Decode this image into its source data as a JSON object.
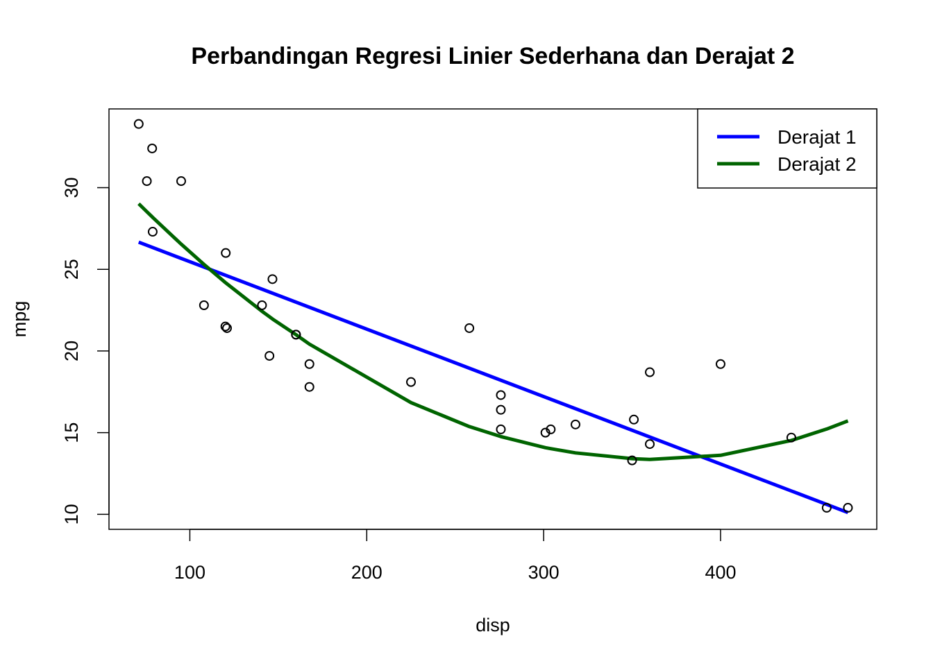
{
  "chart_data": {
    "type": "scatter",
    "title": "Perbandingan Regresi Linier Sederhana dan Derajat 2",
    "xlabel": "disp",
    "ylabel": "mpg",
    "xlim": [
      54.3,
      488.3
    ],
    "ylim": [
      9.08,
      34.82
    ],
    "x_ticks": [
      100,
      200,
      300,
      400
    ],
    "y_ticks": [
      10,
      15,
      20,
      25,
      30
    ],
    "grid": false,
    "legend_position": "top-right",
    "points": {
      "x": [
        160,
        160,
        108,
        258,
        360,
        225,
        360,
        146.7,
        140.8,
        167.6,
        167.6,
        275.8,
        275.8,
        275.8,
        472,
        460,
        440,
        78.7,
        75.7,
        71.1,
        120.1,
        318,
        304,
        350,
        400,
        79,
        120.3,
        95.1,
        351,
        145,
        301,
        121
      ],
      "y": [
        21.0,
        21.0,
        22.8,
        21.4,
        18.7,
        18.1,
        14.3,
        24.4,
        22.8,
        19.2,
        17.8,
        16.4,
        17.3,
        15.2,
        10.4,
        10.4,
        14.7,
        32.4,
        30.4,
        33.9,
        21.5,
        15.5,
        15.2,
        13.3,
        19.2,
        27.3,
        26.0,
        30.4,
        15.8,
        19.7,
        15.0,
        21.4
      ],
      "color": "#000000"
    },
    "series": [
      {
        "name": "Derajat 1",
        "color": "#0000ff",
        "x": [
          71.1,
          472
        ],
        "y": [
          26.66,
          10.11
        ]
      },
      {
        "name": "Derajat 2",
        "color": "#006400",
        "x": [
          71.1,
          75.7,
          78.7,
          79,
          95.1,
          108,
          120.1,
          120.3,
          121,
          140.8,
          145,
          146.7,
          160,
          167.6,
          225,
          258,
          275.8,
          301,
          304,
          318,
          350,
          351,
          360,
          400,
          440,
          460,
          472
        ],
        "y": [
          29.02,
          28.53,
          28.21,
          28.18,
          26.54,
          25.3,
          24.19,
          24.17,
          24.11,
          22.43,
          22.1,
          21.96,
          21.0,
          20.42,
          16.84,
          15.37,
          14.76,
          14.08,
          14.02,
          13.76,
          13.41,
          13.4,
          13.36,
          13.61,
          14.52,
          15.22,
          15.72
        ]
      }
    ]
  }
}
